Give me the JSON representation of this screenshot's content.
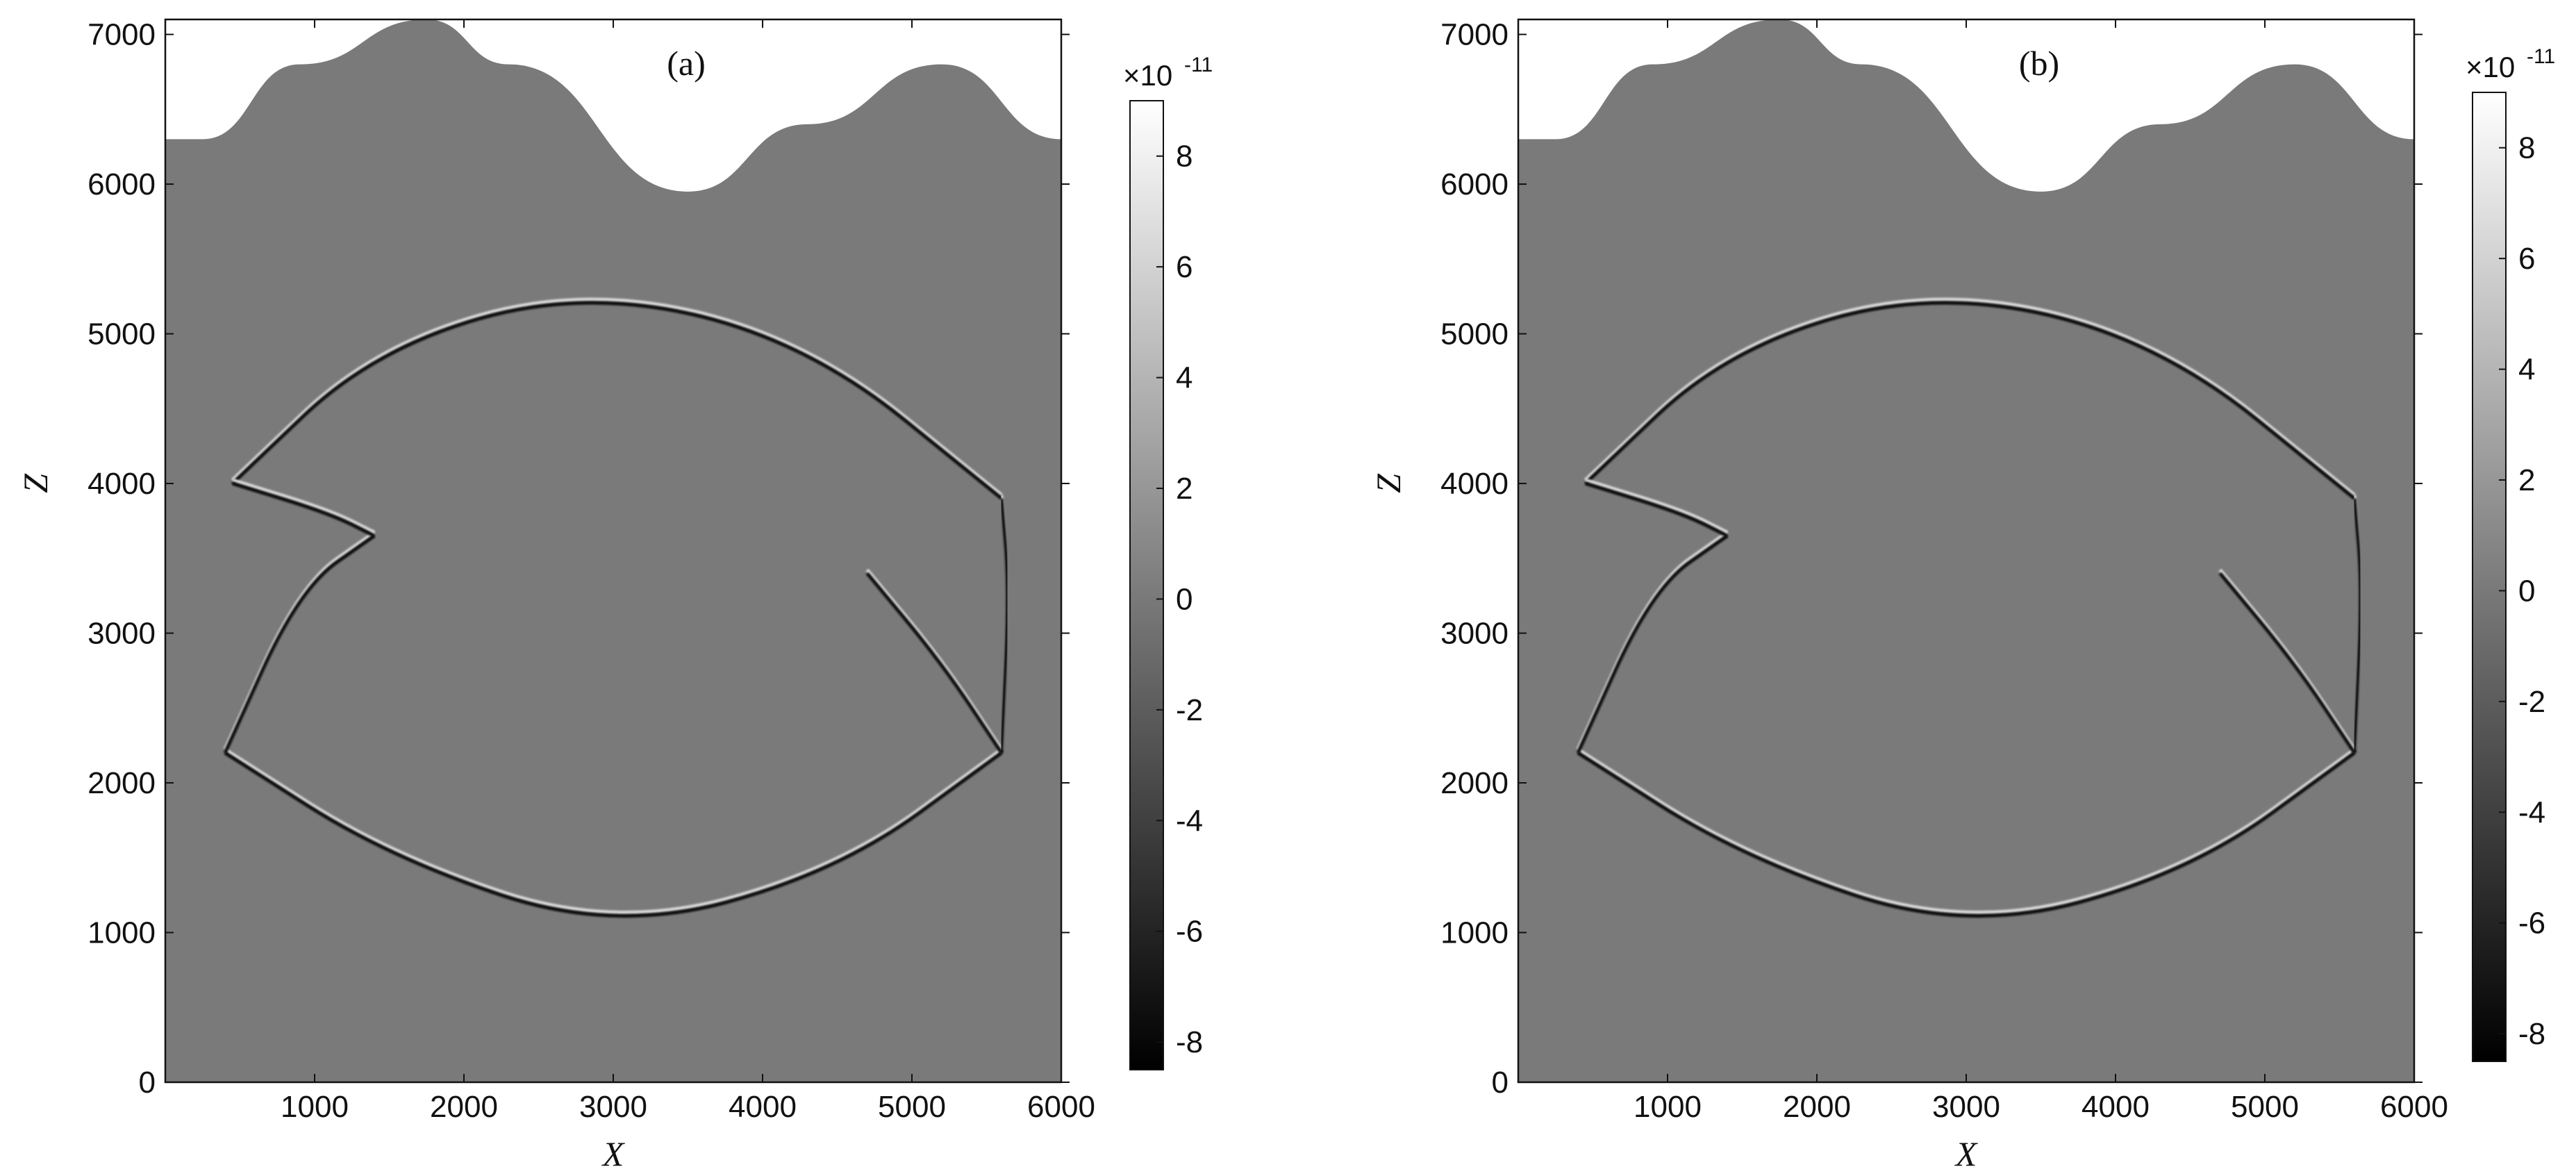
{
  "figure": {
    "colorbar_exponent": "×10",
    "colorbar_exponent_power": "-11"
  },
  "chart_data": [
    {
      "type": "heatmap",
      "panel_label": "(a)",
      "xlabel": "X",
      "ylabel": "Z",
      "xlim": [
        0,
        6000
      ],
      "ylim": [
        0,
        7100
      ],
      "xticks": [
        1000,
        2000,
        3000,
        4000,
        5000,
        6000
      ],
      "yticks": [
        0,
        1000,
        2000,
        3000,
        4000,
        5000,
        6000,
        7000
      ],
      "colormap": "grayscale (black = negative, white = positive)",
      "colorbar": {
        "min": -8.5,
        "max": 9,
        "ticks": [
          8,
          6,
          4,
          2,
          0,
          -2,
          -4,
          -6,
          -8
        ]
      },
      "background_value": 0,
      "surface_topography": [
        [
          0,
          6300
        ],
        [
          250,
          6300
        ],
        [
          900,
          6800
        ],
        [
          1750,
          7100
        ],
        [
          2300,
          6800
        ],
        [
          3500,
          5950
        ],
        [
          4300,
          6400
        ],
        [
          5200,
          6800
        ],
        [
          6000,
          6300
        ]
      ],
      "reflectors": [
        {
          "name": "upper-lens-top",
          "points": [
            [
              450,
              4000
            ],
            [
              1400,
              4900
            ],
            [
              2800,
              5300
            ],
            [
              4300,
              4950
            ],
            [
              5600,
              3900
            ]
          ]
        },
        {
          "name": "lower-lens-bottom",
          "points": [
            [
              400,
              2200
            ],
            [
              1500,
              1500
            ],
            [
              3000,
              1000
            ],
            [
              4500,
              1400
            ],
            [
              5600,
              2200
            ]
          ]
        },
        {
          "name": "inner-arc-left",
          "points": [
            [
              400,
              2200
            ],
            [
              900,
              3300
            ],
            [
              1400,
              3650
            ]
          ]
        },
        {
          "name": "inner-arc-right",
          "points": [
            [
              5600,
              2200
            ],
            [
              5200,
              2800
            ],
            [
              4700,
              3400
            ]
          ]
        },
        {
          "name": "kink-left",
          "points": [
            [
              450,
              4000
            ],
            [
              1100,
              3800
            ],
            [
              1400,
              3650
            ]
          ]
        },
        {
          "name": "kink-right",
          "points": [
            [
              5600,
              3900
            ],
            [
              5650,
              3300
            ],
            [
              5600,
              2200
            ]
          ]
        }
      ]
    },
    {
      "type": "heatmap",
      "panel_label": "(b)",
      "xlabel": "X",
      "ylabel": "Z",
      "xlim": [
        0,
        6000
      ],
      "ylim": [
        0,
        7100
      ],
      "xticks": [
        1000,
        2000,
        3000,
        4000,
        5000,
        6000
      ],
      "yticks": [
        0,
        1000,
        2000,
        3000,
        4000,
        5000,
        6000,
        7000
      ],
      "colormap": "grayscale (black = negative, white = positive)",
      "colorbar": {
        "min": -8.5,
        "max": 9,
        "ticks": [
          8,
          6,
          4,
          2,
          0,
          -2,
          -4,
          -6,
          -8
        ]
      },
      "background_value": 0,
      "surface_topography": [
        [
          0,
          6300
        ],
        [
          250,
          6300
        ],
        [
          900,
          6800
        ],
        [
          1750,
          7100
        ],
        [
          2300,
          6800
        ],
        [
          3500,
          5950
        ],
        [
          4300,
          6400
        ],
        [
          5200,
          6800
        ],
        [
          6000,
          6300
        ]
      ],
      "reflectors": [
        {
          "name": "upper-lens-top",
          "points": [
            [
              450,
              4000
            ],
            [
              1400,
              4900
            ],
            [
              2800,
              5300
            ],
            [
              4300,
              4950
            ],
            [
              5600,
              3900
            ]
          ]
        },
        {
          "name": "lower-lens-bottom",
          "points": [
            [
              400,
              2200
            ],
            [
              1500,
              1500
            ],
            [
              3000,
              1000
            ],
            [
              4500,
              1400
            ],
            [
              5600,
              2200
            ]
          ]
        },
        {
          "name": "inner-arc-left",
          "points": [
            [
              400,
              2200
            ],
            [
              900,
              3300
            ],
            [
              1400,
              3650
            ]
          ]
        },
        {
          "name": "inner-arc-right",
          "points": [
            [
              5600,
              2200
            ],
            [
              5200,
              2800
            ],
            [
              4700,
              3400
            ]
          ]
        },
        {
          "name": "kink-left",
          "points": [
            [
              450,
              4000
            ],
            [
              1100,
              3800
            ],
            [
              1400,
              3650
            ]
          ]
        },
        {
          "name": "kink-right",
          "points": [
            [
              5600,
              3900
            ],
            [
              5650,
              3300
            ],
            [
              5600,
              2200
            ]
          ]
        }
      ]
    }
  ]
}
